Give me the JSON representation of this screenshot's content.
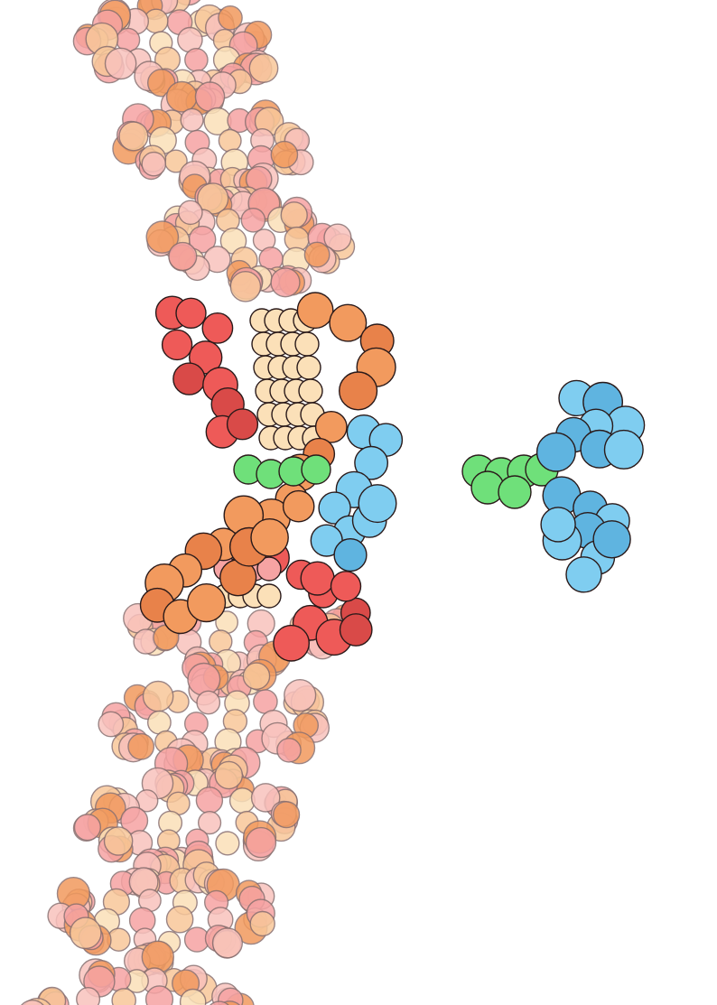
{
  "scene": {
    "subject": "dna-with-bound-intercalating-molecule",
    "colors": {
      "background": "#ffffff",
      "outline": "#2a1a1a",
      "faded_outline": "#8a7070",
      "pink": "#f6a3a3",
      "pink_light": "#f9c2bd",
      "peach": "#f8c79a",
      "cream": "#fbe0b8",
      "orange": "#f29a5e",
      "orange_dark": "#e8824a",
      "red": "#ee5a58",
      "red_dark": "#d94a48",
      "green": "#6fe07a",
      "blue": "#7fcdf0",
      "blue_dark": "#5fb4e0"
    }
  }
}
